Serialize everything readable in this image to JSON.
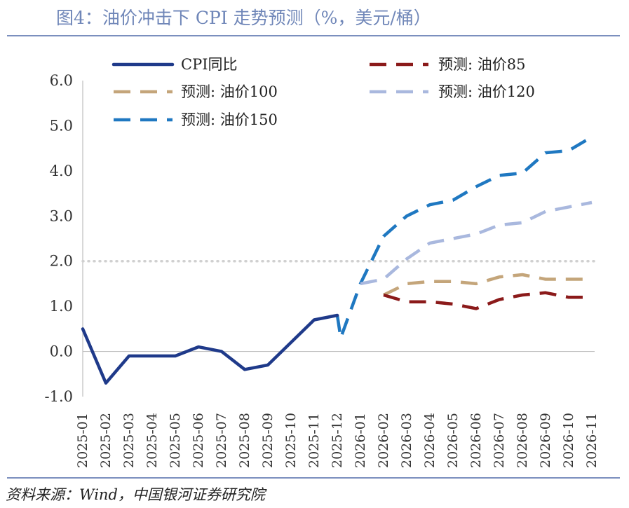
{
  "title": "图4：油价冲击下 CPI 走势预测（%，美元/桶）",
  "source": "资料来源：Wind，中国银河证券研究院",
  "colors": {
    "actual": "#1f3a8a",
    "oil85": "#8b1a1a",
    "oil100": "#c4a57a",
    "oil120": "#a9b8de",
    "oil150": "#1f78c1",
    "reference": "#d0d0d0",
    "axis": "#bfbfbf"
  },
  "chart_data": {
    "type": "line",
    "title": "图4：油价冲击下 CPI 走势预测（%，美元/桶）",
    "xlabel": "",
    "ylabel": "",
    "ylim": [
      -1.0,
      6.0
    ],
    "yticks": [
      "-1.0",
      "0.0",
      "1.0",
      "2.0",
      "3.0",
      "4.0",
      "5.0",
      "6.0"
    ],
    "yticks_values": [
      -1,
      0,
      1,
      2,
      3,
      4,
      5,
      6
    ],
    "categories": [
      "2025-01",
      "2025-02",
      "2025-03",
      "2025-04",
      "2025-05",
      "2025-06",
      "2025-07",
      "2025-08",
      "2025-09",
      "2025-10",
      "2025-11",
      "2025-12",
      "2026-01",
      "2026-02",
      "2026-03",
      "2026-04",
      "2026-05",
      "2026-06",
      "2026-07",
      "2026-08",
      "2026-09",
      "2026-10",
      "2026-11"
    ],
    "reference_line": 2.0,
    "series": [
      {
        "name": "CPI同比",
        "key": "actual",
        "dash": false,
        "points": [
          [
            0,
            0.5
          ],
          [
            1,
            -0.7
          ],
          [
            2,
            -0.1
          ],
          [
            3,
            -0.1
          ],
          [
            4,
            -0.1
          ],
          [
            5,
            0.1
          ],
          [
            6,
            0.0
          ],
          [
            7,
            -0.4
          ],
          [
            8,
            -0.3
          ],
          [
            9,
            0.2
          ],
          [
            10,
            0.7
          ],
          [
            11,
            0.8
          ]
        ]
      },
      {
        "name": "预测: 油价85",
        "key": "oil85",
        "dash": true,
        "points": [
          [
            13,
            1.25
          ],
          [
            14,
            1.1
          ],
          [
            15,
            1.1
          ],
          [
            16,
            1.05
          ],
          [
            17,
            0.95
          ],
          [
            18,
            1.15
          ],
          [
            19,
            1.25
          ],
          [
            20,
            1.3
          ],
          [
            21,
            1.2
          ],
          [
            22,
            1.2
          ]
        ]
      },
      {
        "name": "预测: 油价100",
        "key": "oil100",
        "dash": true,
        "points": [
          [
            13,
            1.25
          ],
          [
            14,
            1.5
          ],
          [
            15,
            1.55
          ],
          [
            16,
            1.55
          ],
          [
            17,
            1.5
          ],
          [
            18,
            1.65
          ],
          [
            19,
            1.7
          ],
          [
            20,
            1.6
          ],
          [
            21,
            1.6
          ],
          [
            22,
            1.6
          ]
        ]
      },
      {
        "name": "预测: 油价120",
        "key": "oil120",
        "dash": true,
        "points": [
          [
            12,
            1.5
          ],
          [
            13,
            1.6
          ],
          [
            14,
            2.05
          ],
          [
            15,
            2.4
          ],
          [
            16,
            2.5
          ],
          [
            17,
            2.6
          ],
          [
            18,
            2.8
          ],
          [
            19,
            2.85
          ],
          [
            20,
            3.1
          ],
          [
            21,
            3.2
          ],
          [
            22,
            3.3
          ]
        ]
      },
      {
        "name": "预测: 油价150",
        "key": "oil150",
        "dash": true,
        "points": [
          [
            11,
            0.8
          ],
          [
            11.15,
            0.3
          ],
          [
            12,
            1.5
          ],
          [
            13,
            2.55
          ],
          [
            14,
            3.0
          ],
          [
            15,
            3.25
          ],
          [
            16,
            3.35
          ],
          [
            17,
            3.65
          ],
          [
            18,
            3.9
          ],
          [
            19,
            3.95
          ],
          [
            20,
            4.4
          ],
          [
            21,
            4.45
          ],
          [
            22,
            4.75
          ]
        ]
      }
    ],
    "legend": [
      {
        "label": "CPI同比",
        "key": "actual",
        "dash": false
      },
      {
        "label": "预测: 油价85",
        "key": "oil85",
        "dash": true
      },
      {
        "label": "预测: 油价100",
        "key": "oil100",
        "dash": true
      },
      {
        "label": "预测: 油价120",
        "key": "oil120",
        "dash": true
      },
      {
        "label": "预测: 油价150",
        "key": "oil150",
        "dash": true
      }
    ],
    "legend_position": "top"
  }
}
